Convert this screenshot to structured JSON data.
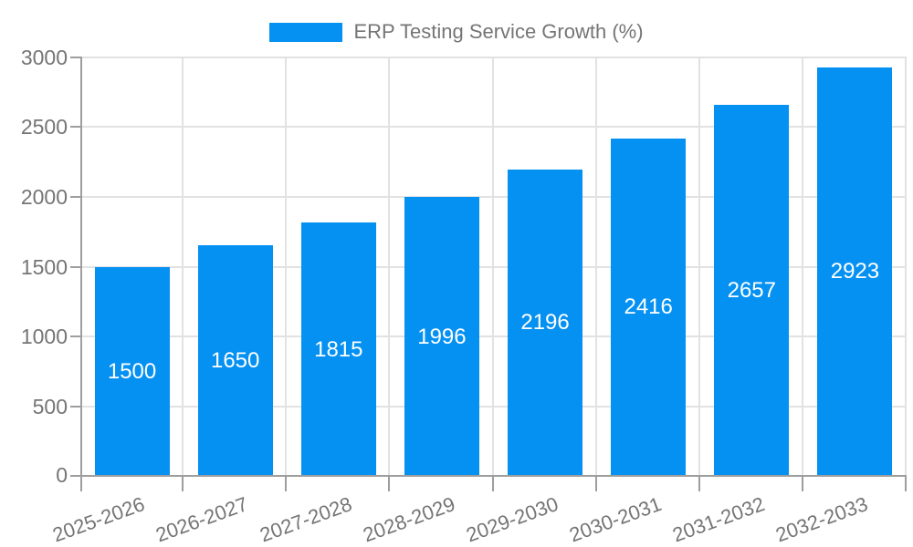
{
  "legend": {
    "label": "ERP Testing Service Growth (%)"
  },
  "chart_data": {
    "type": "bar",
    "title": "ERP Testing Service Growth (%)",
    "categories": [
      "2025-2026",
      "2026-2027",
      "2027-2028",
      "2028-2029",
      "2029-2030",
      "2030-2031",
      "2031-2032",
      "2032-2033"
    ],
    "values": [
      1500,
      1650,
      1815,
      1996,
      2196,
      2416,
      2657,
      2923
    ],
    "value_labels": [
      "1500",
      "1650",
      "1815",
      "1996",
      "2196",
      "2416",
      "2657",
      "2923"
    ],
    "xlabel": "",
    "ylabel": "",
    "ylim": [
      0,
      3000
    ],
    "ytick_values": [
      0,
      500,
      1000,
      1500,
      2000,
      2500,
      3000
    ],
    "ytick_labels": [
      "0",
      "500",
      "1000",
      "1500",
      "2000",
      "2500",
      "3000"
    ],
    "grid": true,
    "legend_position": "top-center",
    "colors": {
      "bar": "#0591F2",
      "grid": "#E2E2E2",
      "axis": "#9E9E9E",
      "tick_label": "#757575",
      "value_label": "#FFFFFF",
      "background": "#FFFFFF"
    }
  }
}
